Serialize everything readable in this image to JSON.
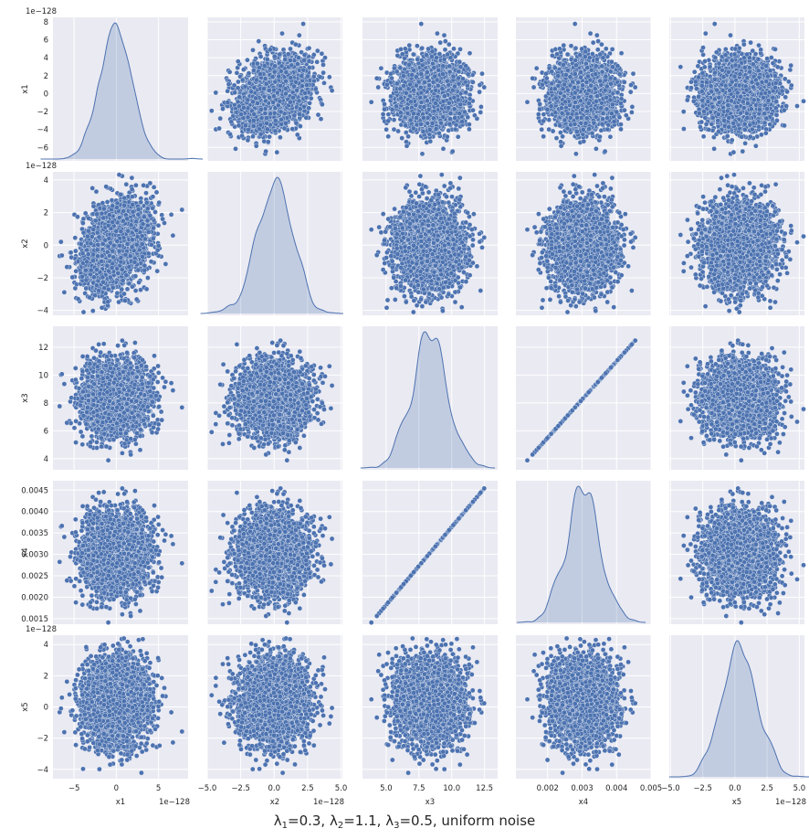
{
  "chart_data": {
    "type": "pairplot",
    "title_parts": {
      "l1": "λ",
      "s1": "1",
      "v1": "=0.3, ",
      "l2": "λ",
      "s2": "2",
      "v2": "=1.1, ",
      "l3": "λ",
      "s3": "3",
      "v3": "=0.5, uniform noise"
    },
    "variables": [
      "x1",
      "x2",
      "x3",
      "x4",
      "x5"
    ],
    "offset_label": "1e−128",
    "point_color": "#4c72b0",
    "kde_fill": "rgba(76,114,176,0.25)",
    "background": "#eaeaf2",
    "n_points": 3000,
    "seed": 7,
    "distributions": {
      "x1": {
        "mean": 0.0,
        "sd": 2.0,
        "unit": "1e-128"
      },
      "x2": {
        "mean": 0.0,
        "sd": 1.3,
        "unit": "1e-128"
      },
      "x3": {
        "mean": 8.3,
        "sd": 1.3
      },
      "x4": {
        "relation": "x4 = 0.000364 * x3",
        "mean": 0.00302
      },
      "x5": {
        "distribution": "bimodal/uniform-noise",
        "mean": 0.0,
        "sd": 1.5,
        "unit": "1e-128"
      }
    },
    "correlations": {
      "x1-x2": 0.3,
      "x3-x4": 1.0
    },
    "axes": {
      "x1": {
        "range": [
          -7.5,
          8.5
        ],
        "ticks": [
          -5,
          0,
          5
        ],
        "tick_labels": [
          "−5",
          "0",
          "5"
        ],
        "row_ticks": [
          -6,
          -4,
          -2,
          0,
          2,
          4,
          6,
          8
        ],
        "row_tick_labels": [
          "−6",
          "−4",
          "−2",
          "0",
          "2",
          "4",
          "6",
          "8"
        ],
        "offset": true
      },
      "x2": {
        "range": [
          -4.3,
          4.5
        ],
        "ticks": [
          -5.0,
          -2.5,
          0.0,
          2.5,
          5.0
        ],
        "tick_labels": [
          "−5.0",
          "−2.5",
          "0.0",
          "2.5",
          "5.0"
        ],
        "row_ticks": [
          -4,
          -2,
          0,
          2,
          4
        ],
        "row_tick_labels": [
          "−4",
          "−2",
          "0",
          "2",
          "4"
        ],
        "col_range": [
          -5.0,
          5.1
        ],
        "offset": true
      },
      "x3": {
        "range": [
          3.2,
          13.5
        ],
        "ticks": [
          5.0,
          7.5,
          10.0,
          12.5
        ],
        "tick_labels": [
          "5.0",
          "7.5",
          "10.0",
          "12.5"
        ],
        "row_ticks": [
          4,
          6,
          8,
          10,
          12
        ],
        "row_tick_labels": [
          "4",
          "6",
          "8",
          "10",
          "12"
        ],
        "offset": false
      },
      "x4": {
        "range": [
          0.00137,
          0.00472
        ],
        "ticks": [
          0.002,
          0.003,
          0.004,
          0.005
        ],
        "tick_labels": [
          "0.002",
          "0.003",
          "0.004",
          "0.005"
        ],
        "row_ticks": [
          0.0015,
          0.002,
          0.0025,
          0.003,
          0.0035,
          0.004,
          0.0045
        ],
        "row_tick_labels": [
          "0.0015",
          "0.0020",
          "0.0025",
          "0.0030",
          "0.0035",
          "0.0040",
          "0.0045"
        ],
        "col_range": [
          0.00108,
          0.005
        ],
        "offset": false
      },
      "x5": {
        "range": [
          -4.6,
          4.6
        ],
        "ticks": [
          -5.0,
          -2.5,
          0.0,
          2.5,
          5.0
        ],
        "tick_labels": [
          "−5.0",
          "−2.5",
          "0.0",
          "2.5",
          "5.0"
        ],
        "row_ticks": [
          -4,
          -2,
          0,
          2,
          4
        ],
        "row_tick_labels": [
          "−4",
          "−2",
          "0",
          "2",
          "4"
        ],
        "col_range": [
          -5.1,
          5.4
        ],
        "offset": true
      }
    },
    "grid": true,
    "diagonal": "kde"
  }
}
